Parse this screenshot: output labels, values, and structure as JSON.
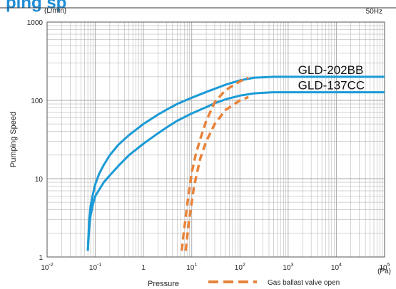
{
  "header": {
    "title_fragment": "ping sp"
  },
  "chart_data": {
    "type": "line",
    "xscale": "log",
    "yscale": "log",
    "xlim": [
      0.01,
      100000
    ],
    "ylim": [
      1,
      1000
    ],
    "grid": true,
    "ylabel": "Pumping Speed",
    "xlabel": "Pressure",
    "y_unit": "(L/min)",
    "x_unit": "(Pa)",
    "frequency_label": "50Hz",
    "x_tick_labels": [
      {
        "value": 0.01,
        "base": "10",
        "exp": "-2"
      },
      {
        "value": 0.1,
        "base": "10",
        "exp": "-1"
      },
      {
        "value": 1,
        "base": "1",
        "exp": ""
      },
      {
        "value": 10,
        "base": "10",
        "exp": "1"
      },
      {
        "value": 100,
        "base": "10",
        "exp": "2"
      },
      {
        "value": 1000,
        "base": "10",
        "exp": "3"
      },
      {
        "value": 10000,
        "base": "10",
        "exp": "4"
      },
      {
        "value": 100000,
        "base": "10",
        "exp": "5"
      }
    ],
    "y_tick_labels": [
      {
        "value": 1,
        "label": "1"
      },
      {
        "value": 10,
        "label": "10"
      },
      {
        "value": 100,
        "label": "100"
      },
      {
        "value": 1000,
        "label": "1000"
      }
    ],
    "colors": {
      "gas_ballast_off": "#1a9ad6",
      "gas_ballast_on": "#e8833a",
      "grid": "#a8a8a8"
    },
    "series": [
      {
        "name": "GLD-202BB",
        "style": "solid",
        "points": [
          [
            0.07,
            1.2
          ],
          [
            0.072,
            1.8
          ],
          [
            0.075,
            3
          ],
          [
            0.08,
            4.5
          ],
          [
            0.09,
            6.5
          ],
          [
            0.1,
            8.5
          ],
          [
            0.12,
            11.5
          ],
          [
            0.15,
            15
          ],
          [
            0.2,
            20
          ],
          [
            0.3,
            27
          ],
          [
            0.5,
            36
          ],
          [
            1,
            50
          ],
          [
            2,
            66
          ],
          [
            3,
            76
          ],
          [
            5,
            90
          ],
          [
            10,
            108
          ],
          [
            20,
            128
          ],
          [
            50,
            158
          ],
          [
            100,
            180
          ],
          [
            200,
            195
          ],
          [
            500,
            200
          ],
          [
            100000,
            200
          ]
        ]
      },
      {
        "name": "GLD-137CC",
        "style": "solid",
        "points": [
          [
            0.07,
            1.2
          ],
          [
            0.072,
            1.6
          ],
          [
            0.075,
            2.4
          ],
          [
            0.08,
            3.4
          ],
          [
            0.09,
            4.8
          ],
          [
            0.1,
            6
          ],
          [
            0.15,
            9
          ],
          [
            0.2,
            11
          ],
          [
            0.3,
            14.5
          ],
          [
            0.5,
            20
          ],
          [
            1,
            28
          ],
          [
            2,
            38
          ],
          [
            3,
            45
          ],
          [
            5,
            55
          ],
          [
            10,
            68
          ],
          [
            20,
            82
          ],
          [
            30,
            92
          ],
          [
            50,
            103
          ],
          [
            100,
            115
          ],
          [
            200,
            123
          ],
          [
            500,
            127
          ],
          [
            100000,
            127
          ]
        ]
      },
      {
        "name": "GLD-202BB (Gas ballast valve open)",
        "style": "dashed",
        "points": [
          [
            6.2,
            1.2
          ],
          [
            6.8,
            2
          ],
          [
            7.5,
            3.2
          ],
          [
            8.2,
            5
          ],
          [
            9,
            7.5
          ],
          [
            10,
            12
          ],
          [
            12,
            20
          ],
          [
            15,
            32
          ],
          [
            20,
            55
          ],
          [
            30,
            95
          ],
          [
            50,
            135
          ],
          [
            100,
            175
          ],
          [
            150,
            195
          ]
        ]
      },
      {
        "name": "GLD-137CC (Gas ballast valve open)",
        "style": "dashed",
        "points": [
          [
            7.5,
            1.2
          ],
          [
            8.2,
            2
          ],
          [
            9,
            3.2
          ],
          [
            10,
            5
          ],
          [
            11,
            7.5
          ],
          [
            12.5,
            11
          ],
          [
            15,
            18
          ],
          [
            20,
            30
          ],
          [
            30,
            50
          ],
          [
            50,
            75
          ],
          [
            100,
            100
          ],
          [
            150,
            110
          ]
        ]
      }
    ],
    "curve_labels": [
      {
        "text": "GLD-202BB",
        "x": 1600,
        "y": 200
      },
      {
        "text": "GLD-137CC",
        "x": 1600,
        "y": 127
      }
    ],
    "legend": {
      "dashed_label": "Gas ballast valve open",
      "placement": "bottom-right"
    }
  }
}
